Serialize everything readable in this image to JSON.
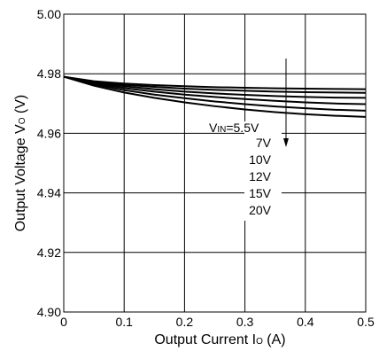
{
  "chart_data": {
    "type": "line",
    "xlabel_main": "Output Current I",
    "xlabel_sub": "O",
    "xlabel_unit": " (A)",
    "ylabel_main": "Output Voltage V",
    "ylabel_sub": "O",
    "ylabel_unit": " (V)",
    "xlim": [
      0,
      0.5
    ],
    "ylim": [
      4.9,
      5.0
    ],
    "x_ticks": [
      "0",
      "0.1",
      "0.2",
      "0.3",
      "0.4",
      "0.5"
    ],
    "y_ticks": [
      "4.90",
      "4.92",
      "4.94",
      "4.96",
      "4.98",
      "5.00"
    ],
    "grid": true,
    "annotation": {
      "prefix": "V",
      "prefix_sub": "IN",
      "labels": [
        "=5.5V",
        "7V",
        "10V",
        "12V",
        "15V",
        "20V"
      ]
    },
    "x": [
      0,
      0.05,
      0.1,
      0.15,
      0.2,
      0.25,
      0.3,
      0.35,
      0.4,
      0.45,
      0.5
    ],
    "series": [
      {
        "values": [
          4.979,
          4.9775,
          4.9767,
          4.9762,
          4.9758,
          4.9755,
          4.9753,
          4.9751,
          4.975,
          4.9749,
          4.9748
        ]
      },
      {
        "values": [
          4.979,
          4.9773,
          4.9763,
          4.9756,
          4.975,
          4.9746,
          4.9743,
          4.974,
          4.9738,
          4.9737,
          4.9736
        ]
      },
      {
        "values": [
          4.979,
          4.977,
          4.9758,
          4.9748,
          4.974,
          4.9734,
          4.9729,
          4.9725,
          4.9722,
          4.972,
          4.9719
        ]
      },
      {
        "values": [
          4.979,
          4.9767,
          4.9752,
          4.974,
          4.973,
          4.9722,
          4.9715,
          4.9709,
          4.9704,
          4.97,
          4.9698
        ]
      },
      {
        "values": [
          4.979,
          4.9764,
          4.9745,
          4.973,
          4.9718,
          4.9707,
          4.9698,
          4.969,
          4.9684,
          4.9679,
          4.9676
        ]
      },
      {
        "values": [
          4.979,
          4.976,
          4.9737,
          4.9719,
          4.9704,
          4.9691,
          4.968,
          4.9671,
          4.9664,
          4.9659,
          4.9655
        ]
      }
    ]
  }
}
